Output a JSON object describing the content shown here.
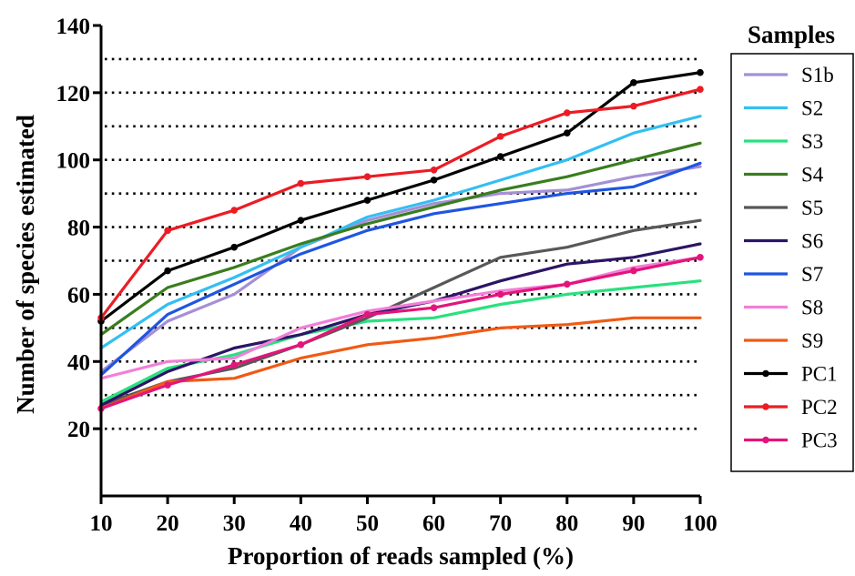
{
  "chart_data": {
    "type": "line",
    "title": "",
    "xlabel": "Proportion of reads sampled (%)",
    "ylabel": "Number of species estimated",
    "xlim": [
      10,
      100
    ],
    "ylim": [
      0,
      140
    ],
    "x": [
      10,
      20,
      30,
      40,
      50,
      60,
      70,
      80,
      90,
      100
    ],
    "x_ticks": [
      10,
      20,
      30,
      40,
      50,
      60,
      70,
      80,
      90,
      100
    ],
    "y_ticks": [
      20,
      40,
      60,
      80,
      100,
      120,
      140
    ],
    "gridlines": [
      20,
      30,
      40,
      50,
      60,
      70,
      80,
      90,
      100,
      110,
      120,
      130
    ],
    "grid": "horizontal dotted",
    "legend_title": "Samples",
    "legend_position": "right",
    "series": [
      {
        "name": "S1b",
        "color": "#a58fd6",
        "markers": false,
        "values": [
          37,
          52,
          60,
          74,
          82,
          87,
          90,
          91,
          95,
          98
        ]
      },
      {
        "name": "S2",
        "color": "#33bff2",
        "markers": false,
        "values": [
          44,
          57,
          65,
          74,
          83,
          88,
          94,
          100,
          108,
          113
        ]
      },
      {
        "name": "S3",
        "color": "#2ae07f",
        "markers": false,
        "values": [
          28,
          38,
          42,
          48,
          52,
          53,
          57,
          60,
          62,
          64
        ]
      },
      {
        "name": "S4",
        "color": "#3a7d1e",
        "markers": false,
        "values": [
          48,
          62,
          68,
          75,
          81,
          86,
          91,
          95,
          100,
          105
        ]
      },
      {
        "name": "S5",
        "color": "#585858",
        "markers": false,
        "values": [
          27,
          34,
          38,
          45,
          53,
          62,
          71,
          74,
          79,
          82
        ]
      },
      {
        "name": "S6",
        "color": "#2d1466",
        "markers": false,
        "values": [
          27,
          37,
          44,
          48,
          54,
          58,
          64,
          69,
          71,
          75
        ]
      },
      {
        "name": "S7",
        "color": "#1f55e0",
        "markers": false,
        "values": [
          36,
          54,
          63,
          72,
          79,
          84,
          87,
          90,
          92,
          99
        ]
      },
      {
        "name": "S8",
        "color": "#f27fd9",
        "markers": false,
        "values": [
          35,
          40,
          41,
          50,
          55,
          58,
          61,
          63,
          68,
          71
        ]
      },
      {
        "name": "S9",
        "color": "#f05a14",
        "markers": false,
        "values": [
          26,
          34,
          35,
          41,
          45,
          47,
          50,
          51,
          53,
          53
        ]
      },
      {
        "name": "PC1",
        "color": "#000000",
        "markers": true,
        "values": [
          52,
          67,
          74,
          82,
          88,
          94,
          101,
          108,
          123,
          126
        ]
      },
      {
        "name": "PC2",
        "color": "#ec1c24",
        "markers": true,
        "values": [
          53,
          79,
          85,
          93,
          95,
          97,
          107,
          114,
          116,
          121
        ]
      },
      {
        "name": "PC3",
        "color": "#e3157a",
        "markers": true,
        "values": [
          26,
          33,
          39,
          45,
          54,
          56,
          60,
          63,
          67,
          71
        ]
      }
    ]
  }
}
